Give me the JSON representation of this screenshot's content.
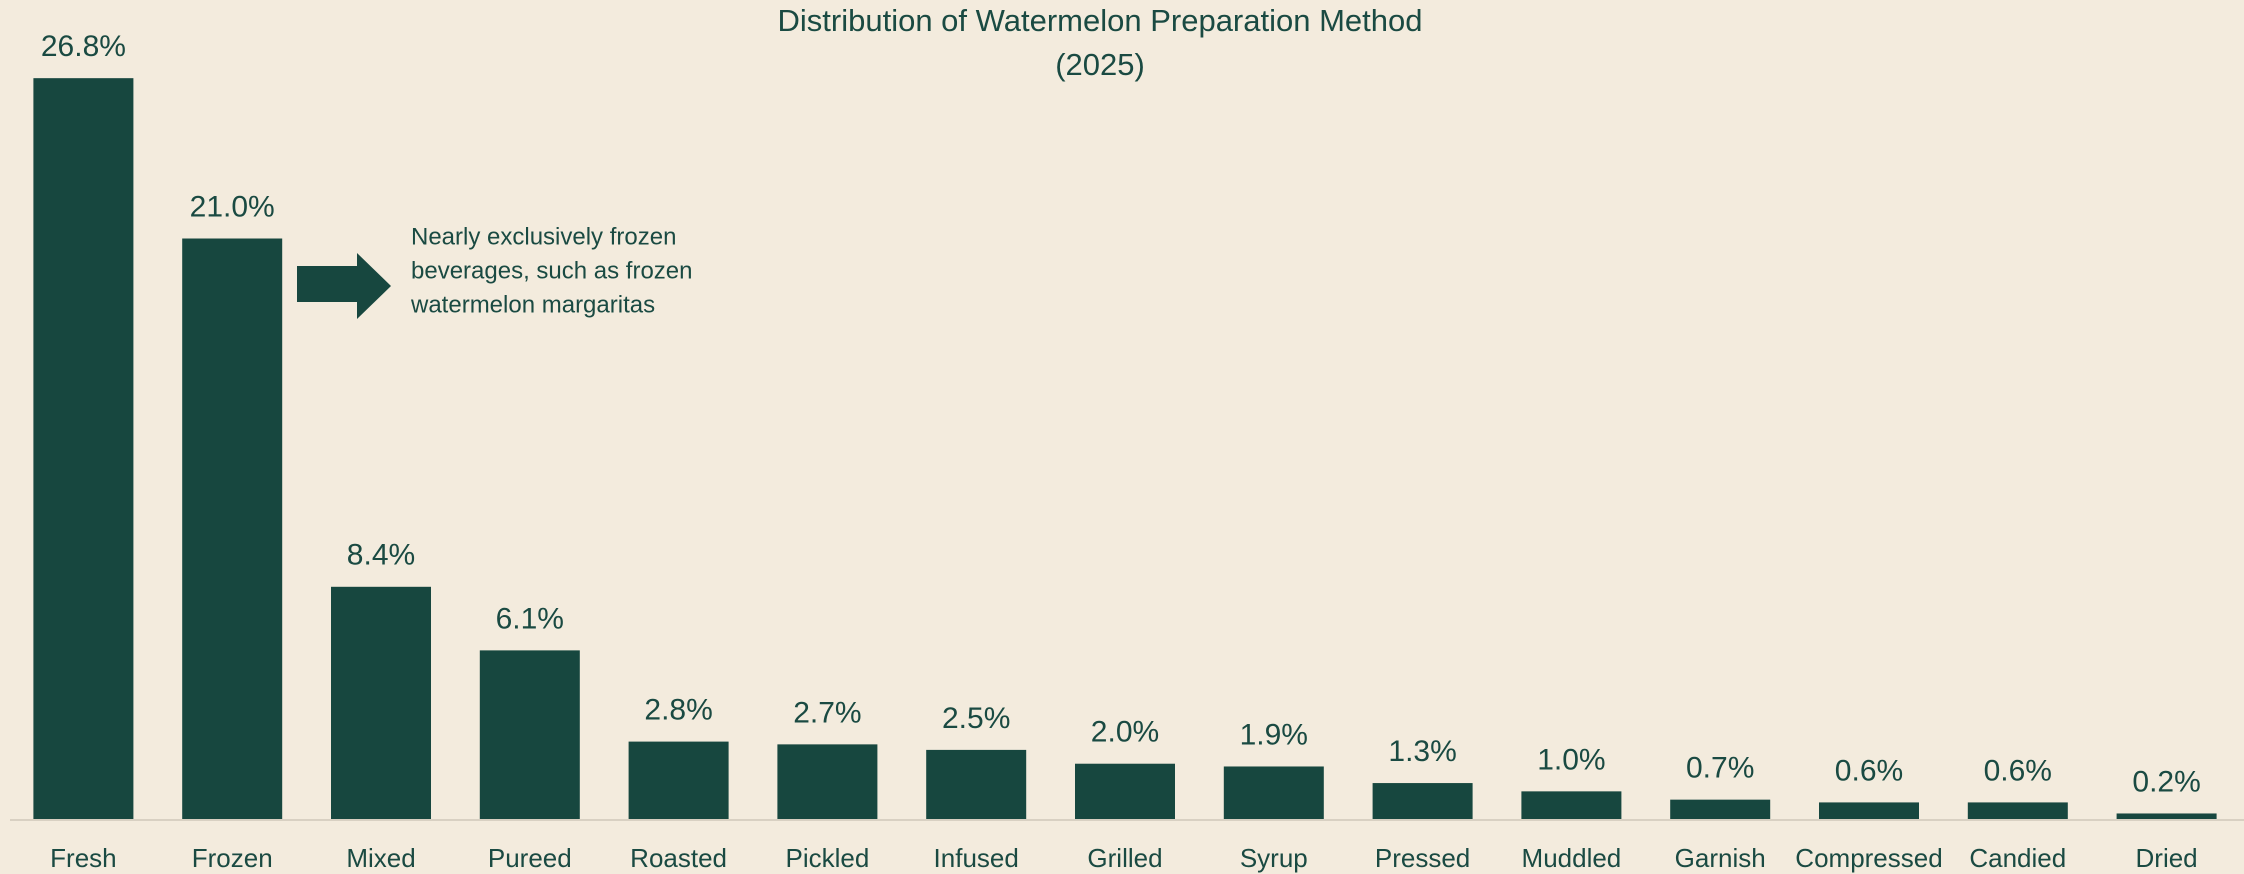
{
  "chart_data": {
    "type": "bar",
    "title": "Distribution of Watermelon Preparation Method",
    "subtitle": "(2025)",
    "annotation": [
      "Nearly exclusively frozen",
      "beverages, such as frozen",
      "watermelon margaritas"
    ],
    "categories": [
      "Fresh",
      "Frozen",
      "Mixed",
      "Pureed",
      "Roasted",
      "Pickled",
      "Infused",
      "Grilled",
      "Syrup",
      "Pressed",
      "Muddled",
      "Garnish",
      "Compressed",
      "Candied",
      "Dried"
    ],
    "values": [
      26.8,
      21.0,
      8.4,
      6.1,
      2.8,
      2.7,
      2.5,
      2.0,
      1.9,
      1.3,
      1.0,
      0.7,
      0.6,
      0.6,
      0.2
    ],
    "value_labels": [
      "26.8%",
      "21.0%",
      "8.4%",
      "6.1%",
      "2.8%",
      "2.7%",
      "2.5%",
      "2.0%",
      "1.9%",
      "1.3%",
      "1.0%",
      "0.7%",
      "0.6%",
      "0.6%",
      "0.2%"
    ],
    "color": "#17473f",
    "ylim": [
      0,
      28
    ]
  }
}
